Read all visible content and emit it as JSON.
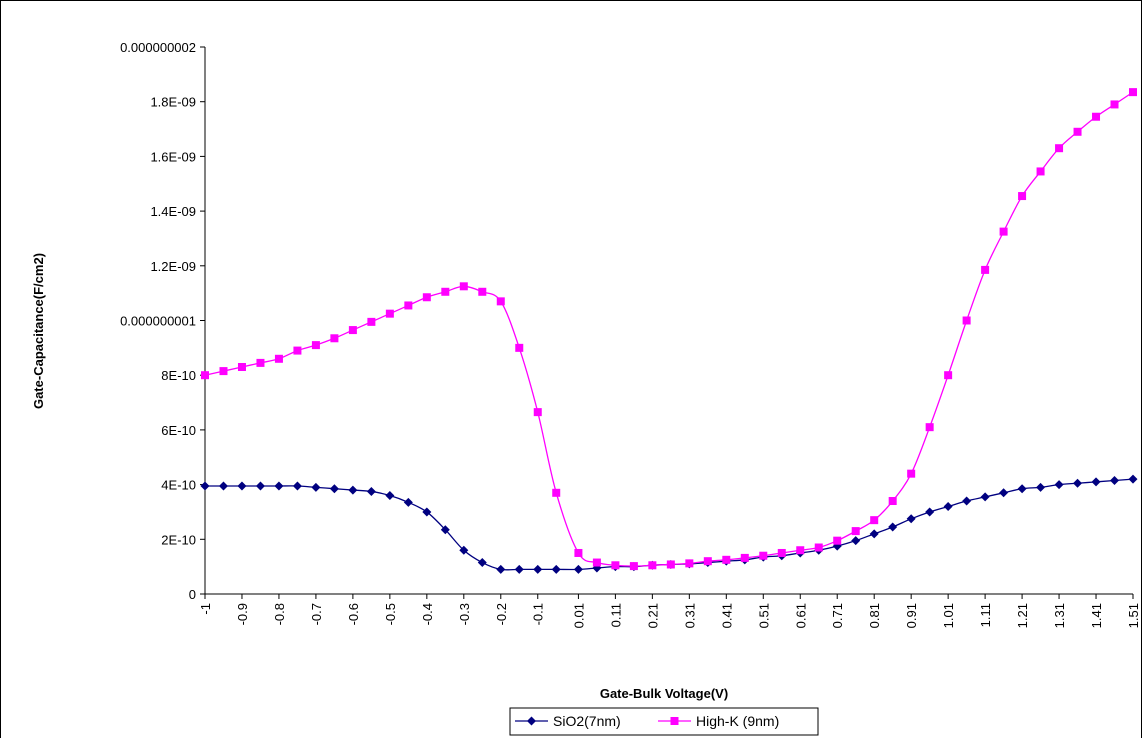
{
  "chart_data": {
    "type": "line",
    "title": "",
    "xlabel": "Gate-Bulk Voltage(V)",
    "ylabel": "Gate-Capacitance(F/cm2)",
    "ylim": [
      0,
      2e-09
    ],
    "y_ticks": [
      {
        "value": 0,
        "label": "0"
      },
      {
        "value": 2e-10,
        "label": "2E-10"
      },
      {
        "value": 4e-10,
        "label": "4E-10"
      },
      {
        "value": 6e-10,
        "label": "6E-10"
      },
      {
        "value": 8e-10,
        "label": "8E-10"
      },
      {
        "value": 1e-09,
        "label": "0.000000001"
      },
      {
        "value": 1.2e-09,
        "label": "1.2E-09"
      },
      {
        "value": 1.4e-09,
        "label": "1.4E-09"
      },
      {
        "value": 1.6e-09,
        "label": "1.6E-09"
      },
      {
        "value": 1.8e-09,
        "label": "1.8E-09"
      },
      {
        "value": 2e-09,
        "label": "0.000000002"
      }
    ],
    "categories": [
      "-1",
      "-0.95",
      "-0.9",
      "-0.85",
      "-0.8",
      "-0.75",
      "-0.7",
      "-0.65",
      "-0.6",
      "-0.55",
      "-0.5",
      "-0.45",
      "-0.4",
      "-0.35",
      "-0.3",
      "-0.25",
      "-0.2",
      "-0.15",
      "-0.1",
      "-0.05",
      "0.01",
      "0.06",
      "0.11",
      "0.16",
      "0.21",
      "0.26",
      "0.31",
      "0.36",
      "0.41",
      "0.46",
      "0.51",
      "0.56",
      "0.61",
      "0.66",
      "0.71",
      "0.76",
      "0.81",
      "0.86",
      "0.91",
      "0.96",
      "1.01",
      "1.06",
      "1.11",
      "1.16",
      "1.21",
      "1.26",
      "1.31",
      "1.36",
      "1.41",
      "1.46",
      "1.51"
    ],
    "tick_labels": [
      "-1",
      "-0.9",
      "-0.8",
      "-0.7",
      "-0.6",
      "-0.5",
      "-0.4",
      "-0.3",
      "-0.2",
      "-0.1",
      "0.01",
      "0.11",
      "0.21",
      "0.31",
      "0.41",
      "0.51",
      "0.61",
      "0.71",
      "0.81",
      "0.91",
      "1.01",
      "1.11",
      "1.21",
      "1.31",
      "1.41",
      "1.51"
    ],
    "series": [
      {
        "name": "SiO2(7nm)",
        "color": "#000080",
        "marker": "diamond",
        "values": [
          3.95e-10,
          3.95e-10,
          3.95e-10,
          3.95e-10,
          3.95e-10,
          3.95e-10,
          3.9e-10,
          3.85e-10,
          3.8e-10,
          3.75e-10,
          3.6e-10,
          3.35e-10,
          3e-10,
          2.35e-10,
          1.6e-10,
          1.15e-10,
          9e-11,
          9e-11,
          9e-11,
          9e-11,
          9e-11,
          9.5e-11,
          1e-10,
          1e-10,
          1.05e-10,
          1.08e-10,
          1.1e-10,
          1.15e-10,
          1.2e-10,
          1.25e-10,
          1.35e-10,
          1.4e-10,
          1.5e-10,
          1.6e-10,
          1.75e-10,
          1.95e-10,
          2.2e-10,
          2.45e-10,
          2.75e-10,
          3e-10,
          3.2e-10,
          3.4e-10,
          3.55e-10,
          3.7e-10,
          3.85e-10,
          3.9e-10,
          4e-10,
          4.05e-10,
          4.1e-10,
          4.15e-10,
          4.2e-10
        ]
      },
      {
        "name": "High-K (9nm)",
        "color": "#ff00ff",
        "marker": "square",
        "values": [
          8e-10,
          8.15e-10,
          8.3e-10,
          8.45e-10,
          8.6e-10,
          8.9e-10,
          9.1e-10,
          9.35e-10,
          9.65e-10,
          9.95e-10,
          1.025e-09,
          1.055e-09,
          1.085e-09,
          1.105e-09,
          1.125e-09,
          1.105e-09,
          1.07e-09,
          9e-10,
          6.65e-10,
          3.7e-10,
          1.5e-10,
          1.15e-10,
          1.05e-10,
          1.02e-10,
          1.05e-10,
          1.08e-10,
          1.12e-10,
          1.2e-10,
          1.25e-10,
          1.32e-10,
          1.4e-10,
          1.5e-10,
          1.6e-10,
          1.7e-10,
          1.95e-10,
          2.3e-10,
          2.7e-10,
          3.4e-10,
          4.4e-10,
          6.1e-10,
          8e-10,
          1e-09,
          1.185e-09,
          1.325e-09,
          1.455e-09,
          1.545e-09,
          1.63e-09,
          1.69e-09,
          1.745e-09,
          1.79e-09,
          1.835e-09
        ]
      }
    ],
    "legend": {
      "position": "bottom"
    }
  }
}
